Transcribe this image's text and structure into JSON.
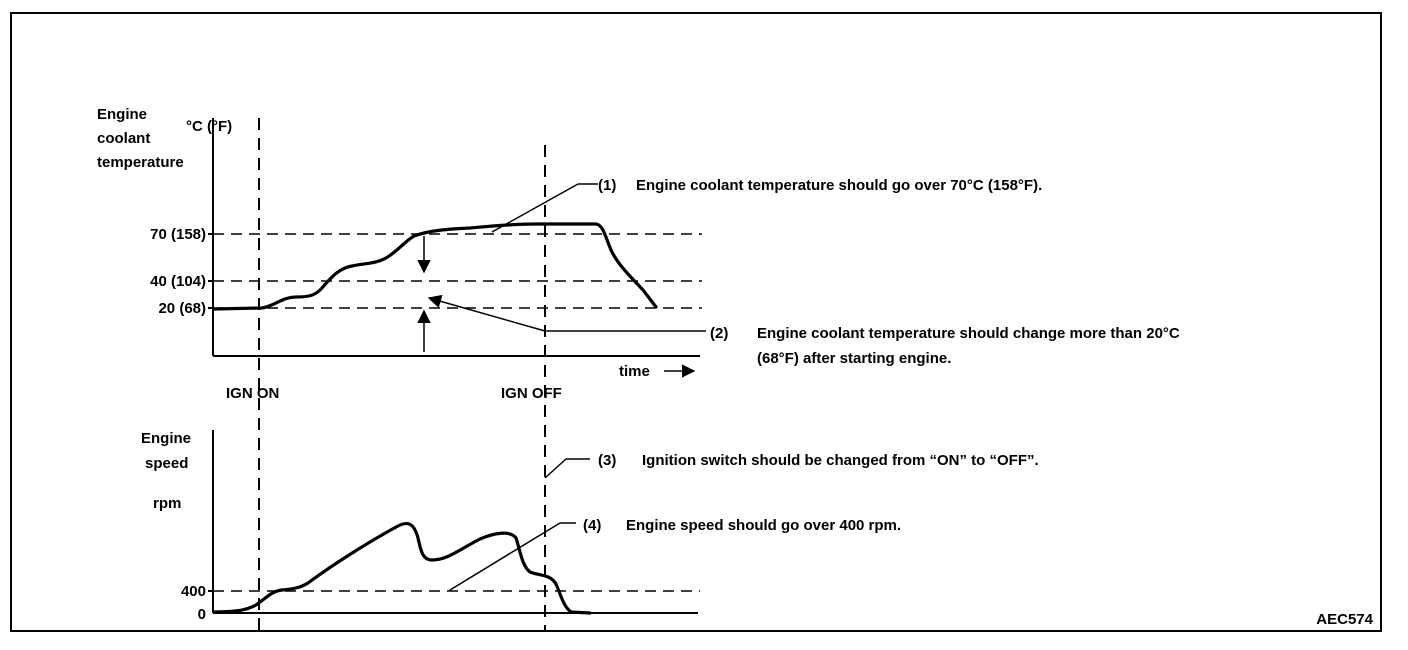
{
  "figure_code": "AEC574",
  "top_chart": {
    "ylabel_line1": "Engine",
    "ylabel_line2": "coolant",
    "ylabel_line3": "temperature",
    "unit": "°C (°F)",
    "ticks": [
      "70 (158)",
      "40 (104)",
      "20 (68)"
    ],
    "time_label": "time"
  },
  "markers": {
    "ign_on": "IGN ON",
    "ign_off": "IGN OFF"
  },
  "bottom_chart": {
    "ylabel_line1": "Engine",
    "ylabel_line2": "speed",
    "unit": "rpm",
    "ticks": [
      "400",
      "0"
    ]
  },
  "notes": {
    "n1_num": "(1)",
    "n1_text": "Engine coolant temperature should go over 70°C (158°F).",
    "n2_num": "(2)",
    "n2_line1": "Engine coolant temperature should change more than 20°C",
    "n2_line2": "(68°F) after starting engine.",
    "n3_num": "(3)",
    "n3_text": "Ignition switch should be changed from “ON” to “OFF”.",
    "n4_num": "(4)",
    "n4_text": "Engine speed should go over 400 rpm."
  }
}
